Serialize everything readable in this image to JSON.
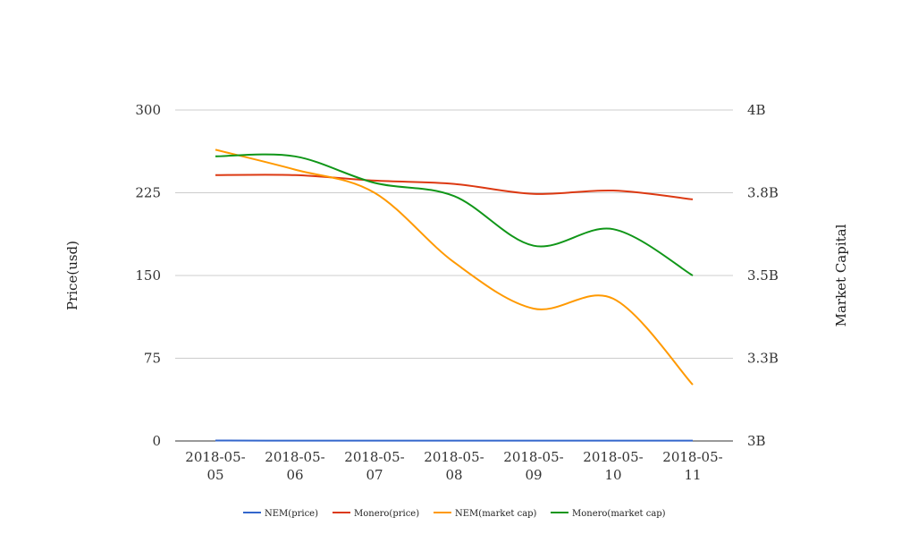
{
  "chart_data": {
    "type": "line",
    "categories": [
      "2018-05-05",
      "2018-05-06",
      "2018-05-07",
      "2018-05-08",
      "2018-05-09",
      "2018-05-10",
      "2018-05-11"
    ],
    "category_label_lines": [
      [
        "2018-05-",
        "05"
      ],
      [
        "2018-05-",
        "06"
      ],
      [
        "2018-05-",
        "07"
      ],
      [
        "2018-05-",
        "08"
      ],
      [
        "2018-05-",
        "09"
      ],
      [
        "2018-05-",
        "10"
      ],
      [
        "2018-05-",
        "11"
      ]
    ],
    "y_left": {
      "label": "Price(usd)",
      "ylim": [
        0,
        300
      ],
      "ticks": [
        0,
        75,
        150,
        225,
        300
      ],
      "tick_labels": [
        "0",
        "75",
        "150",
        "225",
        "300"
      ]
    },
    "y_right": {
      "label": "Market Capital",
      "ylim": [
        3000000000,
        4000000000
      ],
      "ticks": [
        3000000000,
        3250000000,
        3500000000,
        3750000000,
        4000000000
      ],
      "tick_labels": [
        "3B",
        "3.3B",
        "3.5B",
        "3.8B",
        "4B"
      ]
    },
    "grid": true,
    "legend_position": "bottom",
    "series": [
      {
        "name": "NEM(price)",
        "axis": "left",
        "color": "#3366cc",
        "values": [
          0.36,
          0.35,
          0.33,
          0.3,
          0.28,
          0.29,
          0.26
        ]
      },
      {
        "name": "Monero(price)",
        "axis": "left",
        "color": "#dc3912",
        "values": [
          241,
          241,
          236,
          233,
          224,
          227,
          219
        ]
      },
      {
        "name": "NEM(market cap)",
        "axis": "right",
        "color": "#ff9900",
        "values": [
          3880000000,
          3820000000,
          3750000000,
          3540000000,
          3400000000,
          3430000000,
          3170000000
        ]
      },
      {
        "name": "Monero(market cap)",
        "axis": "right",
        "color": "#109618",
        "values": [
          3860000000,
          3860000000,
          3780000000,
          3740000000,
          3590000000,
          3640000000,
          3500000000
        ]
      }
    ]
  }
}
